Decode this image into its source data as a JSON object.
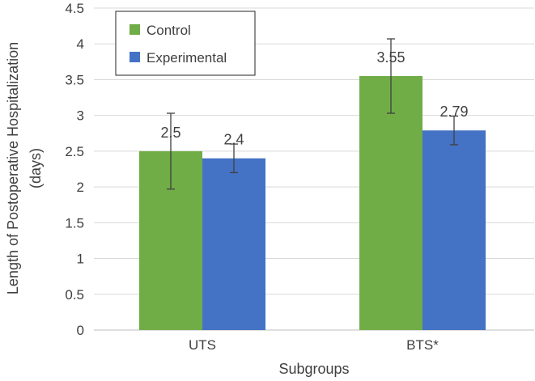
{
  "chart_data": {
    "type": "bar",
    "title": "",
    "xlabel": "Subgroups",
    "ylabel": "Length of Postoperative Hospitalization (days)",
    "ylabel_lines": [
      "Length of Postoperative Hospitalization",
      "(days)"
    ],
    "categories": [
      "UTS",
      "BTS*"
    ],
    "ylim": [
      0,
      4.5
    ],
    "yticks": [
      "0",
      "0.5",
      "1",
      "1.5",
      "2",
      "2.5",
      "3",
      "3.5",
      "4",
      "4.5"
    ],
    "grid": true,
    "legend_position": "top-left",
    "series": [
      {
        "name": "Control",
        "color": "#70ad47",
        "values": [
          2.5,
          3.55
        ],
        "labels": [
          "2.5",
          "3.55"
        ],
        "error": [
          0.53,
          0.52
        ]
      },
      {
        "name": "Experimental",
        "color": "#4472c4",
        "values": [
          2.4,
          2.79
        ],
        "labels": [
          "2.4",
          "2.79"
        ],
        "error": [
          0.2,
          0.2
        ]
      }
    ]
  }
}
